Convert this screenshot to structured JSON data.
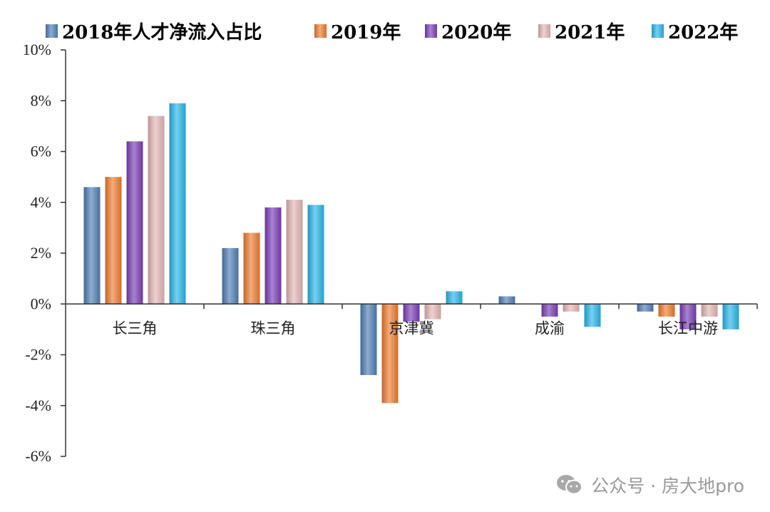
{
  "chart_data": {
    "type": "bar",
    "categories": [
      "长三角",
      "珠三角",
      "京津冀",
      "成渝",
      "长江中游"
    ],
    "series": [
      {
        "name": "2018年人才净流入占比",
        "color": "#4f7fb5",
        "values": [
          4.6,
          2.2,
          -2.8,
          0.3,
          -0.3
        ]
      },
      {
        "name": "2019年",
        "color": "#ee7d32",
        "values": [
          5.0,
          2.8,
          -3.9,
          0.0,
          -0.5
        ]
      },
      {
        "name": "2020年",
        "color": "#7b3fb7",
        "values": [
          6.4,
          3.8,
          -0.7,
          -0.5,
          -1.0
        ]
      },
      {
        "name": "2021年",
        "color": "#e4b7b6",
        "values": [
          7.4,
          4.1,
          -0.6,
          -0.3,
          -0.5
        ]
      },
      {
        "name": "2022年",
        "color": "#2ab6ea",
        "values": [
          7.9,
          3.9,
          0.5,
          -0.9,
          -1.0
        ]
      }
    ],
    "ylim": [
      -6,
      10
    ],
    "yticks": [
      "10%",
      "8%",
      "6%",
      "4%",
      "2%",
      "0%",
      "-2%",
      "-4%",
      "-6%"
    ],
    "ytick_values": [
      10,
      8,
      6,
      4,
      2,
      0,
      -2,
      -4,
      -6
    ],
    "legend_position": "top",
    "grid": false
  },
  "watermark": {
    "text": "公众号 · 房大地pro",
    "icon": "wechat-icon"
  }
}
